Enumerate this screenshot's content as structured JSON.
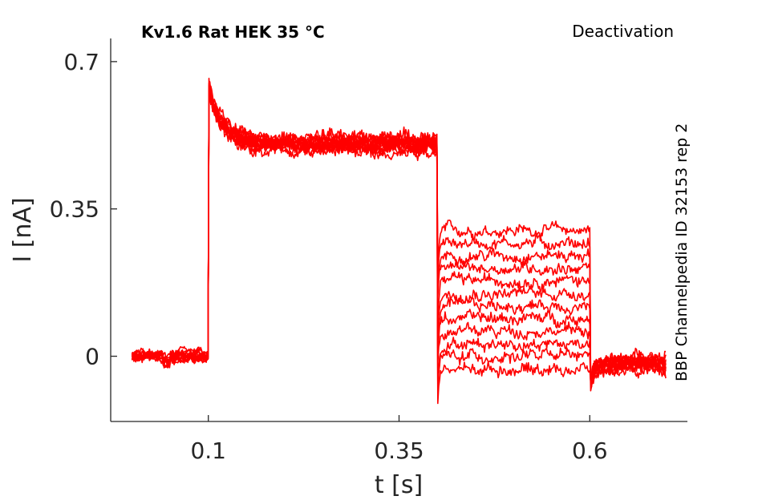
{
  "chart_data": {
    "type": "line",
    "title": "Kv1.6  Rat  HEK  35 °C",
    "subtitle": "Deactivation",
    "side_label": "BBP Channelpedia ID 32153 rep 2",
    "xlabel": "t [s]",
    "ylabel": "I [nA]",
    "xlim": [
      -0.028,
      0.728
    ],
    "ylim": [
      -0.155,
      0.755
    ],
    "xticks": [
      0.1,
      0.35,
      0.6
    ],
    "xtick_labels": [
      "0.1",
      "0.35",
      "0.6"
    ],
    "yticks": [
      0,
      0.35,
      0.7
    ],
    "ytick_labels": [
      "0",
      "0.35",
      "0.7"
    ],
    "grid": false,
    "color": "#ff0000",
    "protocol": {
      "t_start": 0.0,
      "t_step_on": 0.1,
      "t_step_off": 0.4,
      "t_tail_off": 0.6,
      "t_end": 0.7
    },
    "series": [
      {
        "baseline": 0.0,
        "peak": 0.63,
        "plateau": 0.5,
        "tail": 0.3,
        "end": -0.02
      },
      {
        "baseline": 0.0,
        "peak": 0.64,
        "plateau": 0.51,
        "tail": 0.27,
        "end": -0.01
      },
      {
        "baseline": 0.0,
        "peak": 0.63,
        "plateau": 0.49,
        "tail": 0.24,
        "end": -0.03
      },
      {
        "baseline": 0.0,
        "peak": 0.65,
        "plateau": 0.52,
        "tail": 0.21,
        "end": -0.02
      },
      {
        "baseline": 0.0,
        "peak": 0.62,
        "plateau": 0.5,
        "tail": 0.18,
        "end": -0.01
      },
      {
        "baseline": 0.0,
        "peak": 0.64,
        "plateau": 0.51,
        "tail": 0.15,
        "end": -0.03
      },
      {
        "baseline": 0.0,
        "peak": 0.63,
        "plateau": 0.5,
        "tail": 0.12,
        "end": -0.02
      },
      {
        "baseline": 0.0,
        "peak": 0.66,
        "plateau": 0.52,
        "tail": 0.09,
        "end": -0.01
      },
      {
        "baseline": 0.0,
        "peak": 0.62,
        "plateau": 0.49,
        "tail": 0.06,
        "end": -0.02
      },
      {
        "baseline": 0.0,
        "peak": 0.64,
        "plateau": 0.51,
        "tail": 0.03,
        "end": -0.03
      },
      {
        "baseline": 0.0,
        "peak": 0.63,
        "plateau": 0.5,
        "tail": 0.0,
        "end": -0.02
      },
      {
        "baseline": 0.0,
        "peak": 0.65,
        "plateau": 0.5,
        "tail": -0.03,
        "end": -0.01
      }
    ]
  }
}
